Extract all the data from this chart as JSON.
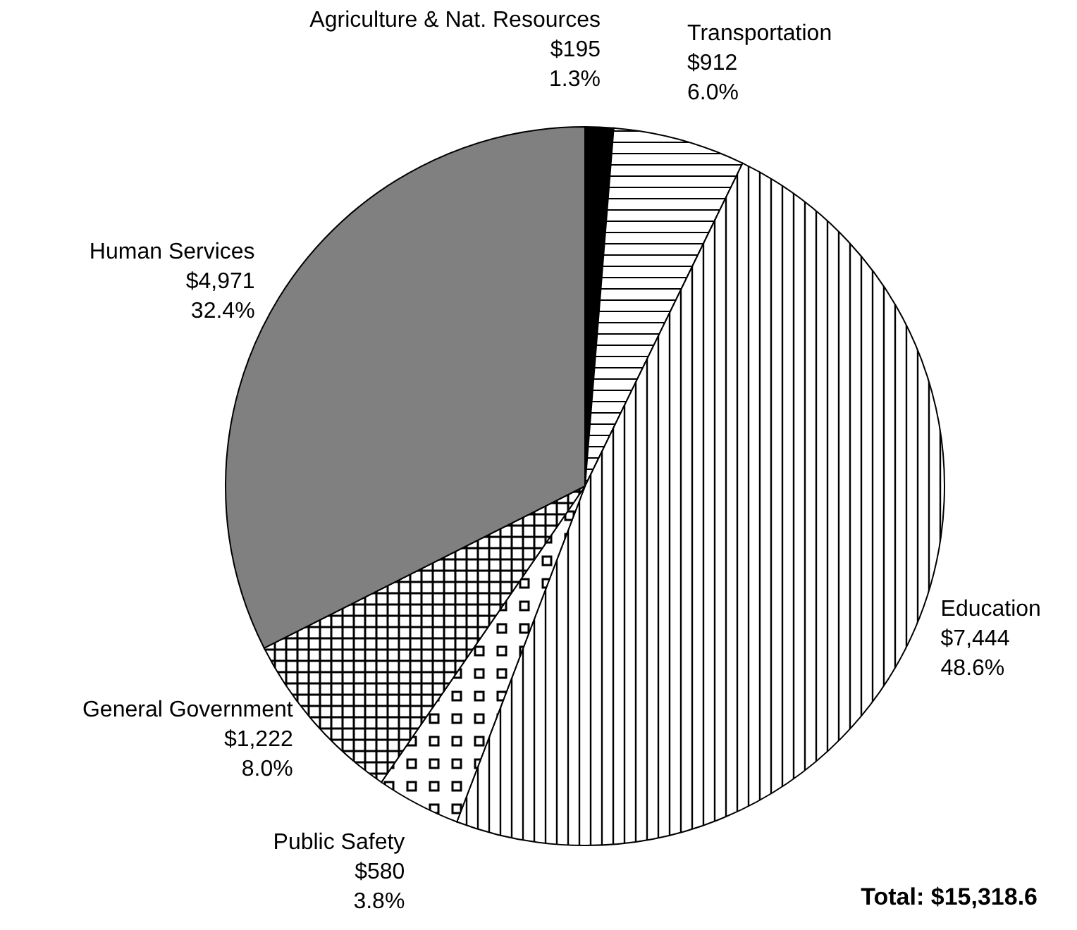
{
  "chart_data": {
    "type": "pie",
    "categories": [
      "Agriculture & Nat. Resources",
      "Transportation",
      "Education",
      "Public Safety",
      "General Government",
      "Human Services"
    ],
    "values": [
      195,
      912,
      7444,
      580,
      1222,
      4971
    ],
    "value_labels": [
      "$195\n1.3%",
      "$912\n6.0%",
      "$7,444\n48.6%",
      "$580\n3.8%",
      "$1,222\n8.0%",
      "$4,971\n32.4%"
    ],
    "colors": [
      "#000000",
      "#ffffff",
      "#ffffff",
      "#ffffff",
      "#ffffff",
      "#808080"
    ],
    "annotations": [
      "Total: $15,318.6"
    ]
  }
}
